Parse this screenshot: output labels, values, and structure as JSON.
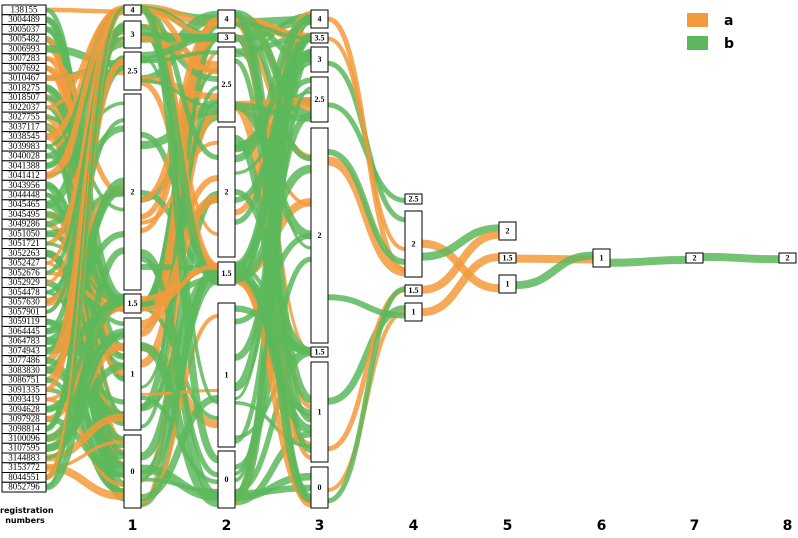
{
  "registration_label": "registration numbers",
  "registration_numbers": [
    "138155",
    "3004489",
    "3005037",
    "3005482",
    "3006993",
    "3007283",
    "3007692",
    "3010467",
    "3018275",
    "3018507",
    "3022037",
    "3027755",
    "3037117",
    "3038545",
    "3039983",
    "3040028",
    "3041388",
    "3041412",
    "3043956",
    "3044448",
    "3045465",
    "3045495",
    "3049286",
    "3051050",
    "3051721",
    "3052263",
    "3052427",
    "3052676",
    "3052929",
    "3054478",
    "3057630",
    "3057901",
    "3059119",
    "3064445",
    "3064783",
    "3074943",
    "3077486",
    "3083830",
    "3086751",
    "3091335",
    "3093419",
    "3094628",
    "3097928",
    "3098814",
    "3100096",
    "3107595",
    "3144883",
    "3153772",
    "8044551",
    "8052796"
  ],
  "columns": [
    {
      "label": "1",
      "nodes": [
        "4",
        "3",
        "2.5",
        "2",
        "1.5",
        "1",
        "0"
      ]
    },
    {
      "label": "2",
      "nodes": [
        "4",
        "3",
        "2.5",
        "2",
        "1.5",
        "1",
        "0"
      ]
    },
    {
      "label": "3",
      "nodes": [
        "4",
        "3.5",
        "3",
        "2.5",
        "2",
        "1.5",
        "1",
        "0"
      ]
    },
    {
      "label": "4",
      "nodes": [
        "2.5",
        "2",
        "1.5",
        "1"
      ]
    },
    {
      "label": "5",
      "nodes": [
        "2",
        "1.5",
        "1"
      ]
    },
    {
      "label": "6",
      "nodes": [
        "1"
      ]
    },
    {
      "label": "7",
      "nodes": [
        "2"
      ]
    },
    {
      "label": "8",
      "nodes": [
        "2"
      ]
    }
  ],
  "legend": [
    {
      "label": "a",
      "color": "#f39a3c"
    },
    {
      "label": "b",
      "color": "#5cb85c"
    }
  ]
}
